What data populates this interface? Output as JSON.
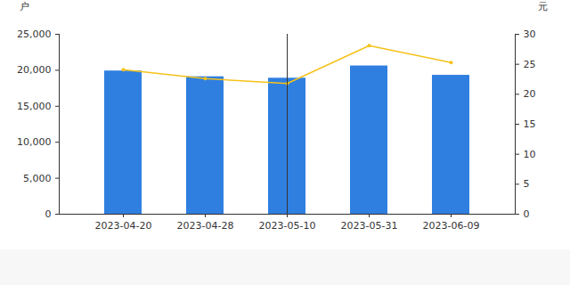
{
  "chart_data": {
    "type": "bar",
    "categories": [
      "2023-04-20",
      "2023-04-28",
      "2023-05-10",
      "2023-05-31",
      "2023-06-09"
    ],
    "y_label": "户",
    "y2_label": "元",
    "ylim": [
      0,
      25000
    ],
    "yticks": [
      0,
      {
        "value": 5000,
        "label": "5,000"
      },
      {
        "value": 10000,
        "label": "10,000"
      },
      {
        "value": 15000,
        "label": "15,000"
      },
      {
        "value": 20000,
        "label": "20,000"
      },
      {
        "value": 25000,
        "label": "25,000"
      }
    ],
    "y2lim": [
      0,
      30
    ],
    "y2ticks": [
      0,
      5,
      10,
      15,
      20,
      25,
      30
    ],
    "grid": false,
    "series": [
      {
        "type": "bar",
        "color": "#2f7fe0",
        "values": [
          19900,
          19100,
          18900,
          20600,
          19300
        ]
      },
      {
        "type": "line",
        "axis": "y2",
        "color": "#f5c21b",
        "marker": "circle",
        "values": [
          24.1,
          22.6,
          21.8,
          28.1,
          25.3
        ]
      }
    ]
  }
}
